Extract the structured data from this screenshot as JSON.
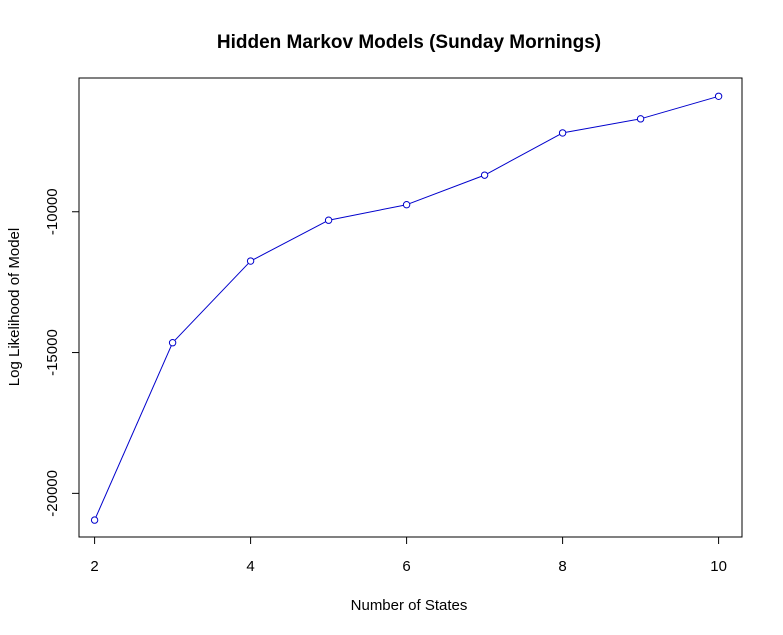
{
  "chart_data": {
    "type": "line",
    "title": "Hidden Markov Models (Sunday Mornings)",
    "xlabel": "Number of States",
    "ylabel": "Log Likelihood of Model",
    "x": [
      2,
      3,
      4,
      5,
      6,
      7,
      8,
      9,
      10
    ],
    "series": [
      {
        "values": [
          -20950,
          -14650,
          -11750,
          -10300,
          -9750,
          -8700,
          -7200,
          -6700,
          -5900
        ],
        "color": "#0000cc",
        "marker": "open-circle"
      }
    ],
    "xlim": [
      1.8,
      10.3
    ],
    "ylim": [
      -21550,
      -5250
    ],
    "xticks": [
      2,
      4,
      6,
      8,
      10
    ],
    "xtick_labels": [
      "2",
      "4",
      "6",
      "8",
      "10"
    ],
    "yticks": [
      -20000,
      -15000,
      -10000
    ],
    "ytick_labels": [
      "-20000",
      "-15000",
      "-10000"
    ],
    "grid": false,
    "legend": "none"
  }
}
